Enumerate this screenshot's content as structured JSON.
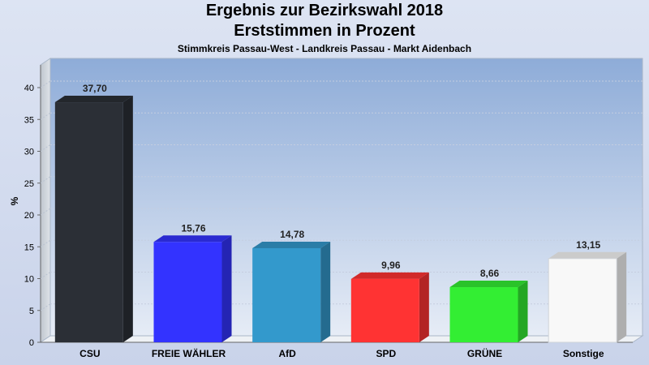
{
  "chart_data": {
    "type": "bar",
    "title": "Ergebnis zur Bezirkswahl 2018",
    "title_line2": "Erststimmen in Prozent",
    "subtitle": "Stimmkreis Passau-West - Landkreis Passau - Markt Aidenbach",
    "ylabel": "%",
    "xlabel": "",
    "ylim": [
      0,
      40
    ],
    "yticks": [
      0,
      5,
      10,
      15,
      20,
      25,
      30,
      35,
      40
    ],
    "categories": [
      "CSU",
      "FREIE WÄHLER",
      "AfD",
      "SPD",
      "GRÜNE",
      "Sonstige"
    ],
    "values": [
      37.7,
      15.76,
      14.78,
      9.96,
      8.66,
      13.15
    ],
    "value_labels": [
      "37,70",
      "15,76",
      "14,78",
      "9,96",
      "8,66",
      "13,15"
    ],
    "colors": [
      "#2b2f36",
      "#3333ff",
      "#3399cc",
      "#ff3333",
      "#33ee33",
      "#f8f8f8"
    ],
    "grid": true,
    "legend": "none"
  }
}
